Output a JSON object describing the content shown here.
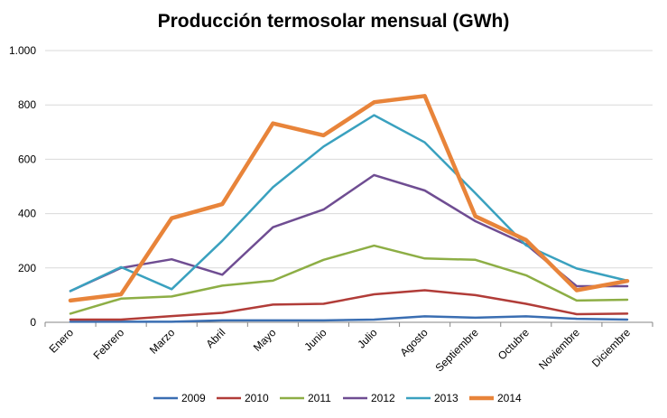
{
  "chart_data": {
    "type": "line",
    "title": "Producción termosolar mensual (GWh)",
    "xlabel": "",
    "ylabel": "",
    "ylim": [
      0,
      1000
    ],
    "yticks": [
      0,
      200,
      400,
      600,
      800,
      1000
    ],
    "ytick_labels": [
      "0",
      "200",
      "400",
      "600",
      "800",
      "1.000"
    ],
    "grid": true,
    "legend_position": "bottom",
    "categories": [
      "Enero",
      "Febrero",
      "Marzo",
      "Abril",
      "Mayo",
      "Junio",
      "Julio",
      "Agosto",
      "Septiembre",
      "Octubre",
      "Noviembre",
      "Diciembre"
    ],
    "series": [
      {
        "name": "2009",
        "color": "#3a6eb2",
        "values": [
          2,
          2,
          2,
          7,
          7,
          7,
          10,
          22,
          17,
          22,
          13,
          10
        ]
      },
      {
        "name": "2010",
        "color": "#b13c38",
        "values": [
          10,
          10,
          23,
          35,
          65,
          68,
          103,
          118,
          100,
          68,
          30,
          32
        ]
      },
      {
        "name": "2011",
        "color": "#8dae45",
        "values": [
          32,
          87,
          95,
          135,
          153,
          230,
          282,
          235,
          230,
          173,
          80,
          83
        ]
      },
      {
        "name": "2012",
        "color": "#6f4d92",
        "values": [
          115,
          200,
          232,
          175,
          350,
          415,
          542,
          485,
          372,
          287,
          133,
          133
        ]
      },
      {
        "name": "2013",
        "color": "#3aa1bf",
        "values": [
          115,
          203,
          122,
          300,
          497,
          647,
          762,
          662,
          475,
          283,
          198,
          153
        ]
      },
      {
        "name": "2014",
        "color": "#e8843a",
        "values": [
          80,
          103,
          383,
          435,
          732,
          688,
          810,
          833,
          390,
          303,
          118,
          152
        ]
      }
    ]
  }
}
